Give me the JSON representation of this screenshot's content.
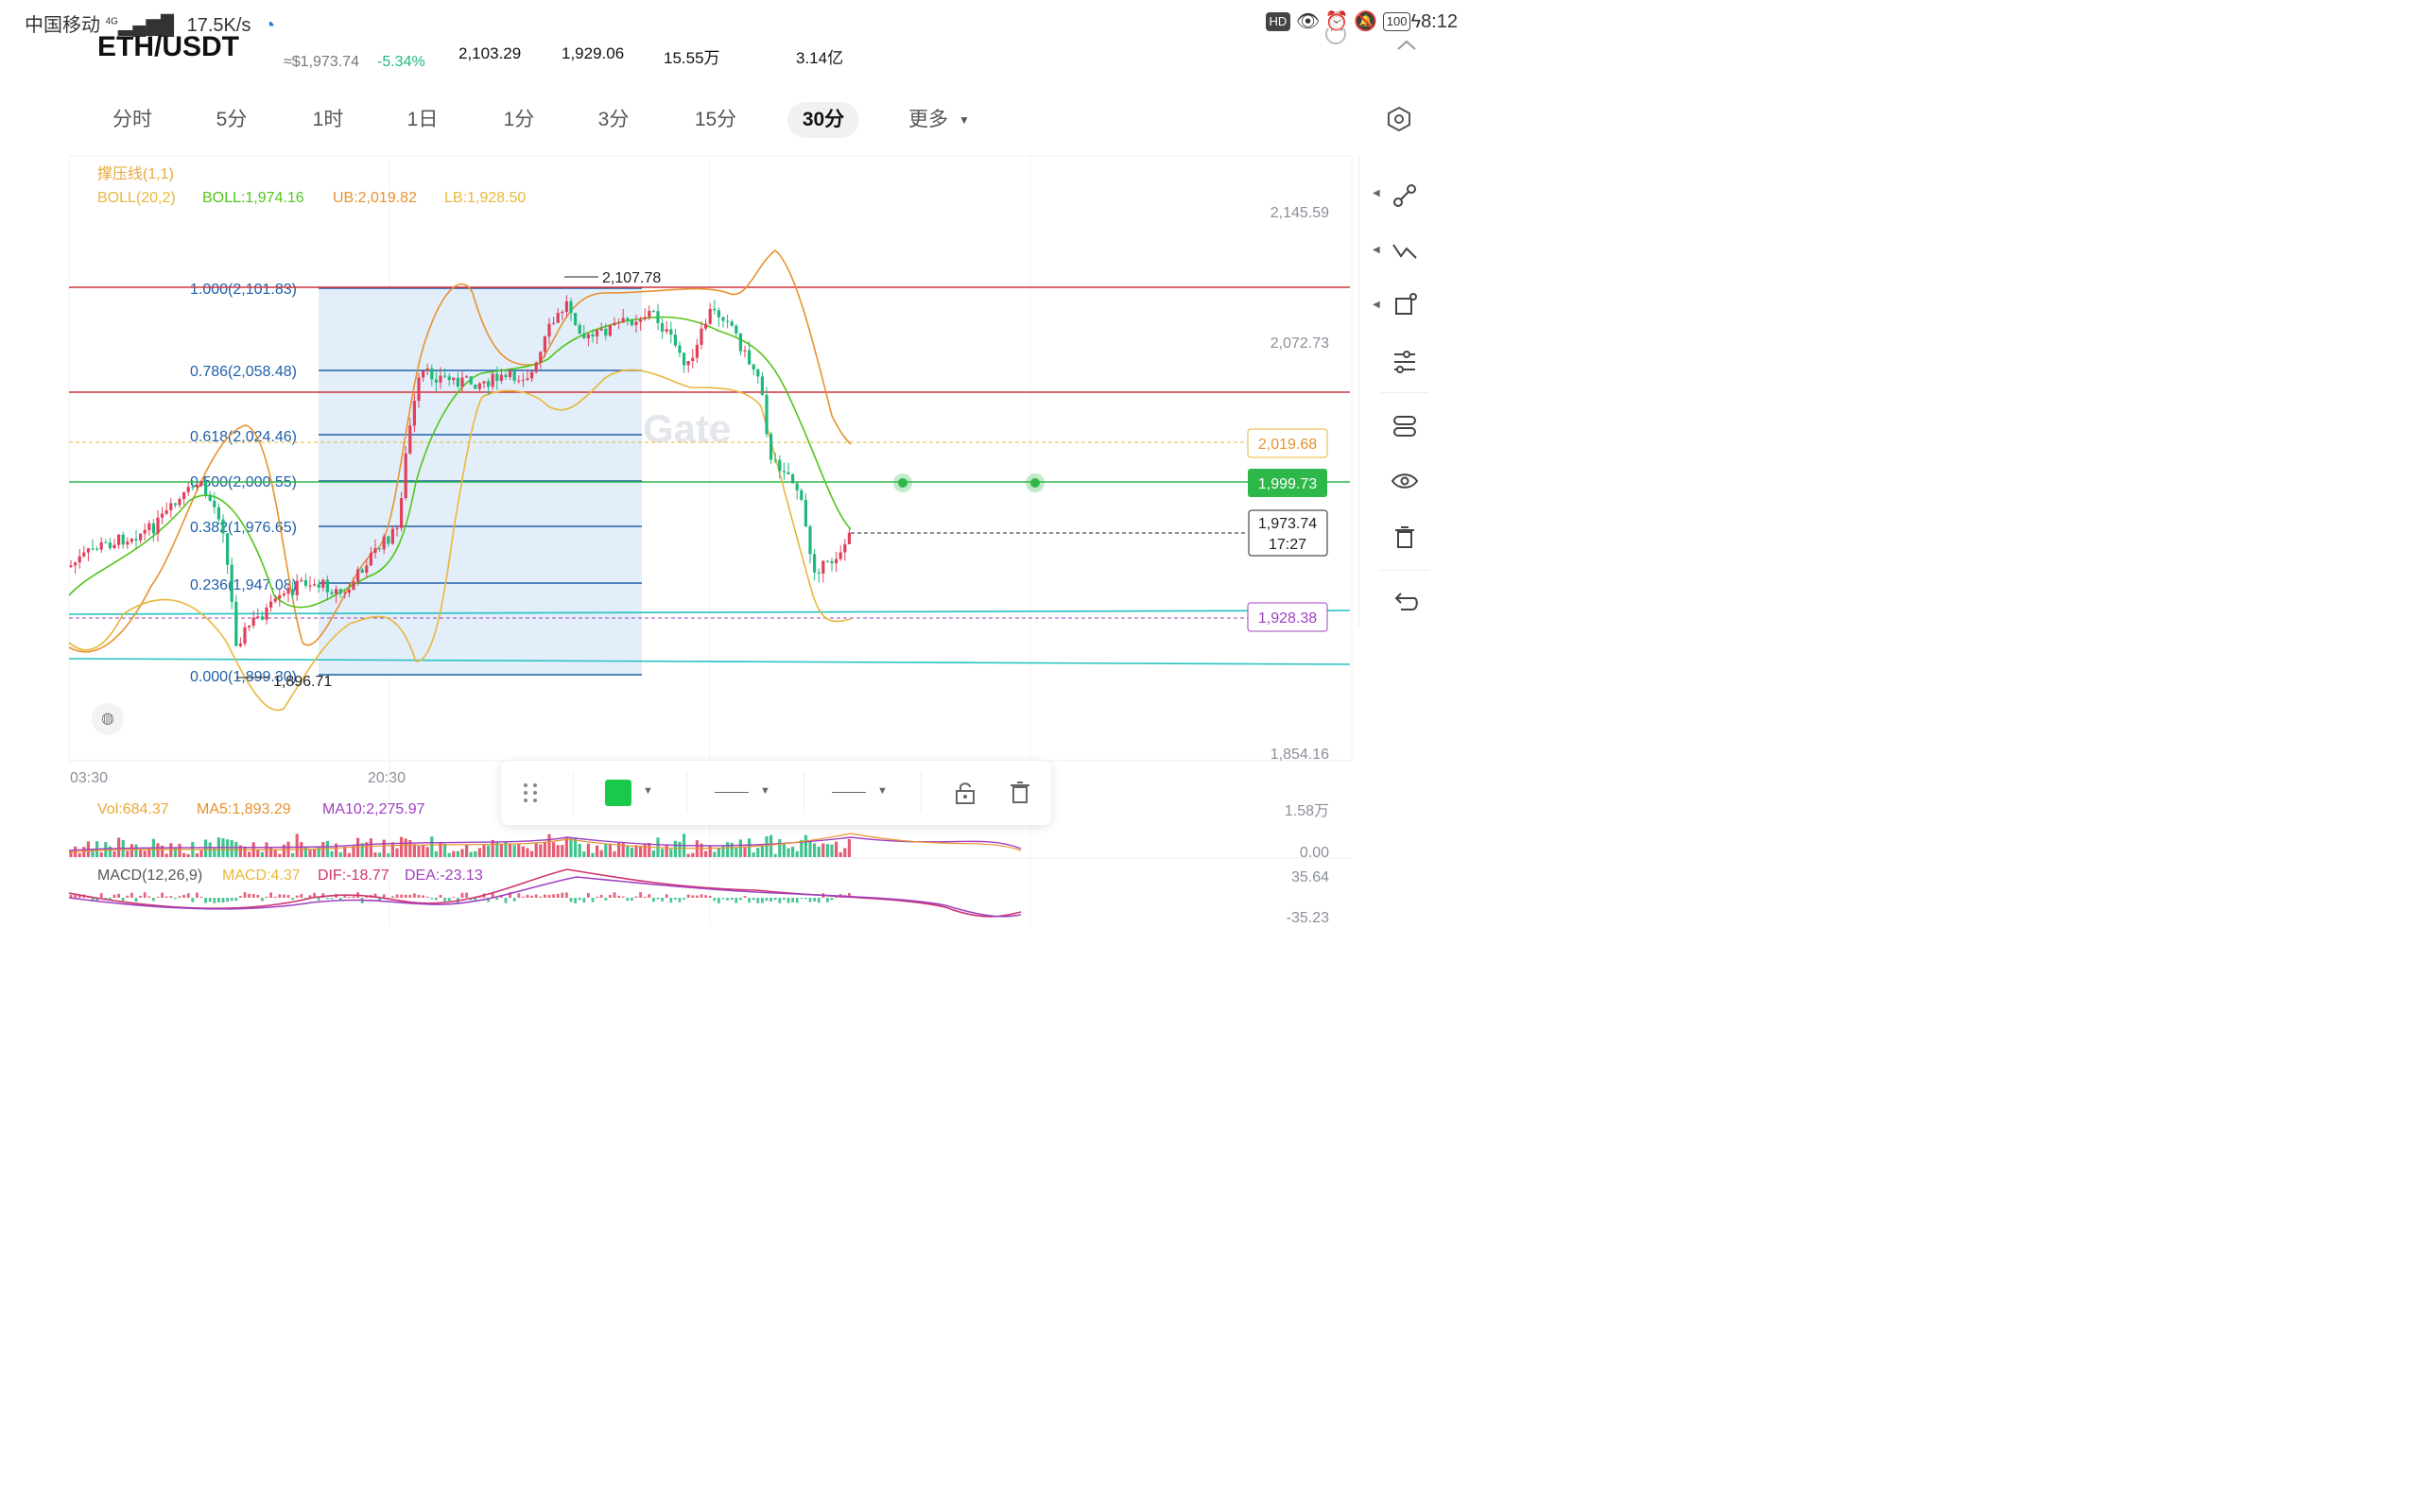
{
  "status_bar": {
    "carrier": "中国移动",
    "network": "4G",
    "speed": "17.5K/s",
    "hd": "HD",
    "battery": "100",
    "time": "8:12"
  },
  "header": {
    "pair": "ETH/USDT",
    "usd_price": "≈$1,973.74",
    "change": "-5.34%",
    "high": "2,103.29",
    "low": "1,929.06",
    "vol": "15.55万",
    "turnover": "3.14亿"
  },
  "tabs": [
    {
      "label": "分时"
    },
    {
      "label": "5分"
    },
    {
      "label": "1时"
    },
    {
      "label": "1日"
    },
    {
      "label": "1分"
    },
    {
      "label": "3分"
    },
    {
      "label": "15分"
    },
    {
      "label": "30分"
    },
    {
      "label": "更多"
    }
  ],
  "indicators": {
    "sr_line": "撑压线(1,1)",
    "boll_name": "BOLL(20,2)",
    "boll": "BOLL:1,974.16",
    "ub": "UB:2,019.82",
    "lb": "LB:1,928.50"
  },
  "fib_levels": [
    {
      "label": "1.000(2,101.83)"
    },
    {
      "label": "0.786(2,058.48)"
    },
    {
      "label": "0.618(2,024.46)"
    },
    {
      "label": "0.500(2,000.55)"
    },
    {
      "label": "0.382(1,976.65)"
    },
    {
      "label": "0.236(1,947.08)"
    },
    {
      "label": "0.000(1,899.30)"
    }
  ],
  "annotations": {
    "high_marker": "2,107.78",
    "low_marker": "1,896.71",
    "watermark": "Gate"
  },
  "price_axis": {
    "ticks": [
      "2,145.59",
      "2,072.73",
      "1,854.16"
    ],
    "tag_orange": "2,019.68",
    "tag_green": "1,999.73",
    "tag_current": "1,973.74",
    "tag_countdown": "17:27",
    "tag_purple": "1,928.38"
  },
  "time_axis": [
    "03:30",
    "20:30"
  ],
  "volume": {
    "vol": "Vol:684.37",
    "ma5": "MA5:1,893.29",
    "ma10": "MA10:2,275.97",
    "axis_top": "1.58万",
    "axis_bottom": "0.00"
  },
  "macd": {
    "name": "MACD(12,26,9)",
    "macd": "MACD:4.37",
    "dif": "DIF:-18.77",
    "dea": "DEA:-23.13",
    "axis_top": "35.64",
    "axis_bottom": "-35.23"
  },
  "colors": {
    "up": "#e0405a",
    "down": "#1fb87a",
    "boll_mid": "#52c41a",
    "boll_band": "#e89b2e",
    "fib": "#1f5fa8",
    "resistance": "#d0333d",
    "support": "#26c2c2",
    "purple": "#a040c0"
  }
}
